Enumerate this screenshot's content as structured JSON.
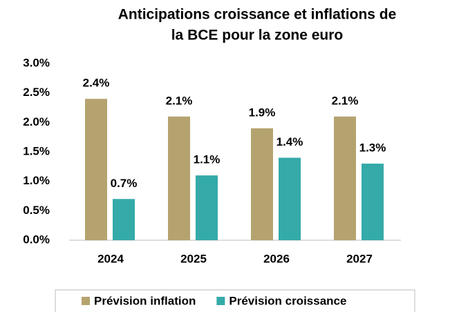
{
  "chart_data": {
    "type": "bar",
    "title": [
      "Anticipations croissance et inflations de",
      "la BCE pour la zone euro"
    ],
    "categories": [
      "2024",
      "2025",
      "2026",
      "2027"
    ],
    "series": [
      {
        "name": "Prévision inflation",
        "color": "#b5a36f",
        "values": [
          2.4,
          2.1,
          1.9,
          2.1
        ],
        "value_labels": [
          "2.4%",
          "2.1%",
          "1.9%",
          "2.1%"
        ]
      },
      {
        "name": "Prévision croissance",
        "color": "#34aaa9",
        "values": [
          0.7,
          1.1,
          1.4,
          1.3
        ],
        "value_labels": [
          "0.7%",
          "1.1%",
          "1.4%",
          "1.3%"
        ]
      }
    ],
    "ylim": [
      0,
      3
    ],
    "yticks": [
      {
        "value": 0,
        "label": "0.0%"
      },
      {
        "value": 0.5,
        "label": "0.5%"
      },
      {
        "value": 1,
        "label": "1.0%"
      },
      {
        "value": 1.5,
        "label": "1.5%"
      },
      {
        "value": 2,
        "label": "2.0%"
      },
      {
        "value": 2.5,
        "label": "2.5%"
      },
      {
        "value": 3,
        "label": "3.0%"
      }
    ],
    "grid": false,
    "legend": "bottom"
  }
}
